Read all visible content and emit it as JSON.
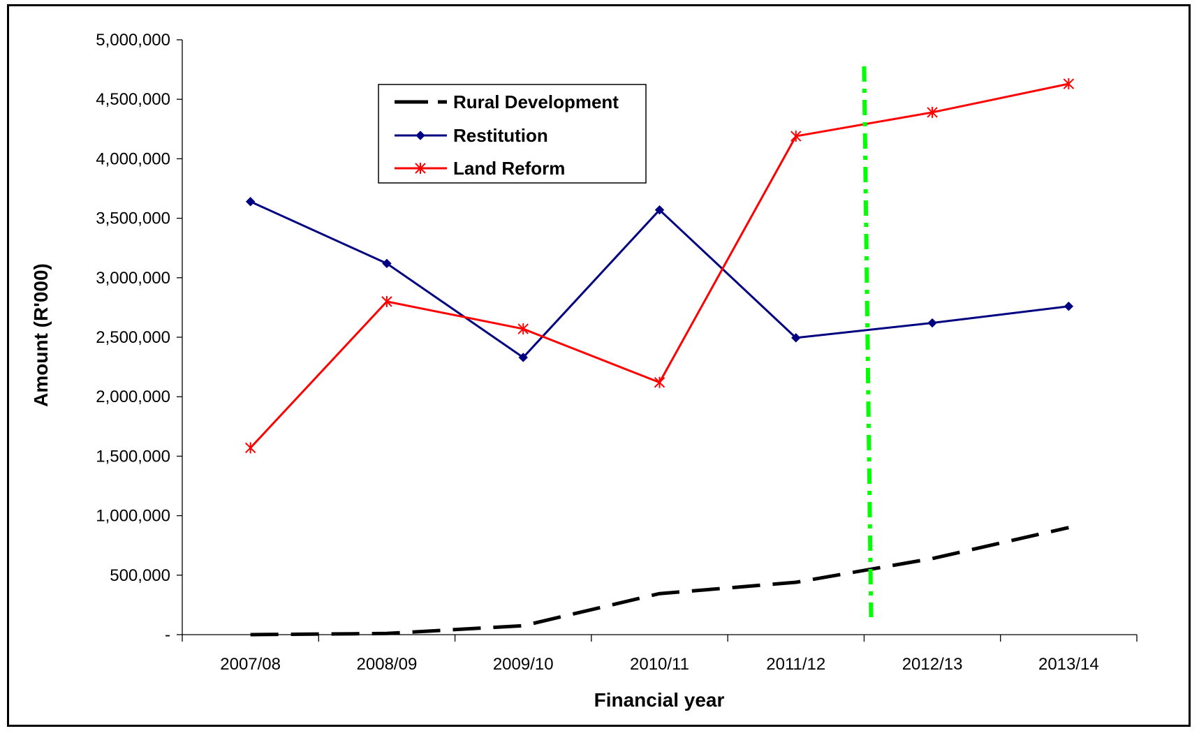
{
  "chart_data": {
    "type": "line",
    "categories": [
      "2007/08",
      "2008/09",
      "2009/10",
      "2010/11",
      "2011/12",
      "2012/13",
      "2013/14"
    ],
    "series": [
      {
        "name": "Rural Development",
        "values": [
          0,
          10000,
          75000,
          345000,
          440000,
          640000,
          900000
        ],
        "color": "#000000",
        "style": "dashed",
        "marker": "none"
      },
      {
        "name": "Restitution",
        "values": [
          3640000,
          3120000,
          2330000,
          3570000,
          2495000,
          2620000,
          2760000
        ],
        "color": "#000080",
        "style": "solid",
        "marker": "diamond"
      },
      {
        "name": "Land Reform",
        "values": [
          1570000,
          2800000,
          2570000,
          2120000,
          4190000,
          4390000,
          4630000
        ],
        "color": "#ff0000",
        "style": "solid",
        "marker": "asterisk"
      }
    ],
    "vertical_marker": {
      "between": [
        "2011/12",
        "2012/13"
      ],
      "color": "#00ff00",
      "style": "dash-dot"
    },
    "ylim": [
      0,
      5000000
    ],
    "y_ticks": [
      0,
      500000,
      1000000,
      1500000,
      2000000,
      2500000,
      3000000,
      3500000,
      4000000,
      4500000,
      5000000
    ],
    "y_tick_labels": [
      "-",
      "500,000",
      "1,000,000",
      "1,500,000",
      "2,000,000",
      "2,500,000",
      "3,000,000",
      "3,500,000",
      "4,000,000",
      "4,500,000",
      "5,000,000"
    ],
    "xlabel": "Financial year",
    "ylabel": "Amount (R'000)",
    "grid": false,
    "legend_position": "top-left"
  }
}
